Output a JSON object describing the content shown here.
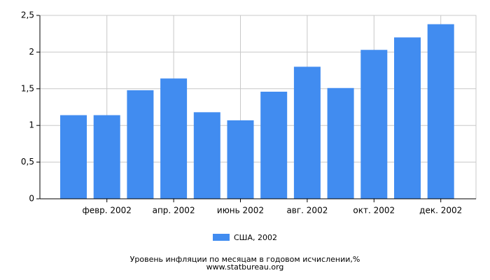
{
  "chart_data": {
    "type": "bar",
    "categories": [
      null,
      "февр. 2002",
      null,
      "апр. 2002",
      null,
      "июнь 2002",
      null,
      "авг. 2002",
      null,
      "окт. 2002",
      null,
      "дек. 2002"
    ],
    "series": [
      {
        "name": "США, 2002",
        "color": "#418cf0",
        "values": [
          1.14,
          1.14,
          1.48,
          1.64,
          1.18,
          1.07,
          1.46,
          1.8,
          1.51,
          2.03,
          2.2,
          2.38
        ]
      }
    ],
    "ylim": [
      0,
      2.5
    ],
    "yticks": [
      0,
      {
        "value": 0.5,
        "label": "0,5"
      },
      1,
      {
        "value": 1.5,
        "label": "1,5"
      },
      2,
      {
        "value": 2.5,
        "label": "2,5"
      }
    ],
    "grid": true,
    "title": "Уровень инфляции по месяцам в годовом исчислении,%",
    "subtitle": "www.statbureau.org"
  }
}
